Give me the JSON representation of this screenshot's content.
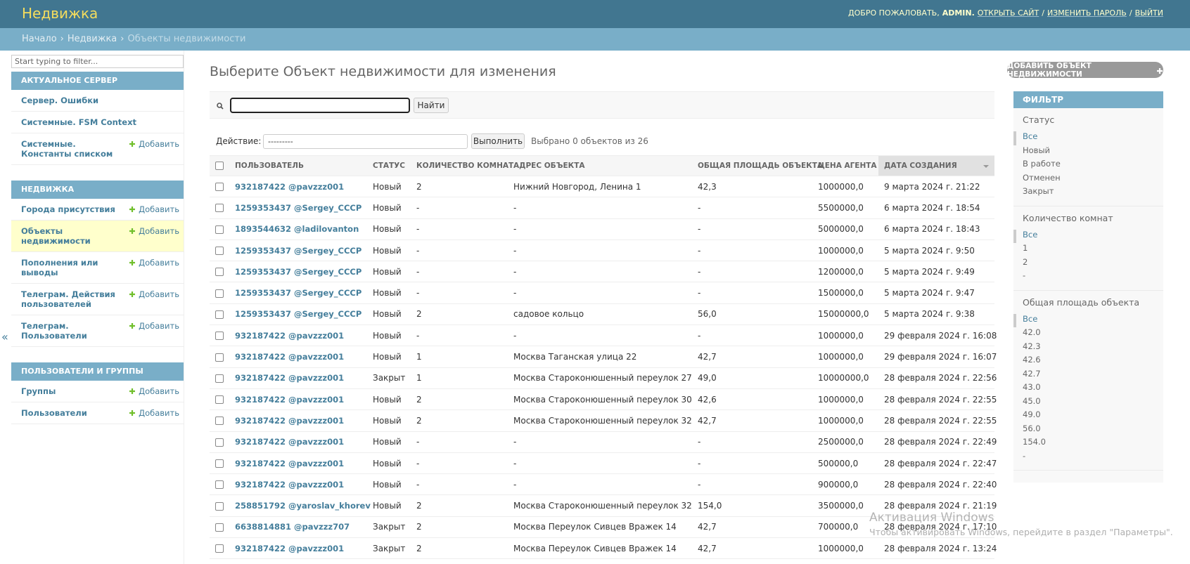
{
  "header": {
    "site_name": "Недвижка",
    "welcome": "ДОБРО ПОЖАЛОВАТЬ,",
    "user": "ADMIN.",
    "links": [
      "ОТКРЫТЬ САЙТ",
      "ИЗМЕНИТЬ ПАРОЛЬ",
      "ВЫЙТИ"
    ],
    "separator": "/"
  },
  "breadcrumbs": {
    "items": [
      "Начало",
      "Недвижка",
      "Объекты недвижимости"
    ],
    "separator": "›"
  },
  "sidebar": {
    "filter_placeholder": "Start typing to filter...",
    "toggle": "«",
    "apps": [
      {
        "name": "АКТУАЛЬНОЕ СЕРВЕР",
        "models": [
          {
            "name": "Сервер. Ошибки"
          },
          {
            "name": "Системные. FSM Context"
          },
          {
            "name": "Системные. Константы списком",
            "add": "Добавить"
          }
        ]
      },
      {
        "name": "НЕДВИЖКА",
        "models": [
          {
            "name": "Города присутствия",
            "add": "Добавить"
          },
          {
            "name": "Объекты недвижимости",
            "add": "Добавить",
            "active": true
          },
          {
            "name": "Пополнения или выводы",
            "add": "Добавить"
          },
          {
            "name": "Телеграм. Действия пользователей",
            "add": "Добавить"
          },
          {
            "name": "Телеграм. Пользователи",
            "add": "Добавить"
          }
        ]
      },
      {
        "name": "ПОЛЬЗОВАТЕЛИ И ГРУППЫ",
        "models": [
          {
            "name": "Группы",
            "add": "Добавить"
          },
          {
            "name": "Пользователи",
            "add": "Добавить"
          }
        ]
      }
    ]
  },
  "content": {
    "title": "Выберите Объект недвижимости для изменения",
    "add_button": "ДОБАВИТЬ ОБЪЕКТ НЕДВИЖИМОСТИ",
    "search_button": "Найти",
    "action_label": "Действие:",
    "action_select": "---------",
    "action_go": "Выполнить",
    "selected_counter": "Выбрано 0 объектов из 26"
  },
  "table": {
    "columns": [
      "ПОЛЬЗОВАТЕЛЬ",
      "СТАТУС",
      "КОЛИЧЕСТВО КОМНАТ",
      "АДРЕС ОБЪЕКТА",
      "ОБЩАЯ ПЛОЩАДЬ ОБЪЕКТА",
      "ЦЕНА АГЕНТА",
      "ДАТА СОЗДАНИЯ"
    ],
    "rows": [
      [
        "932187422 @pavzzz001",
        "Новый",
        "2",
        "Нижний Новгород, Ленина 1",
        "42,3",
        "1000000,0",
        "9 марта 2024 г. 21:22"
      ],
      [
        "1259353437 @Sergey_CCCP",
        "Новый",
        "-",
        "-",
        "-",
        "5500000,0",
        "6 марта 2024 г. 18:54"
      ],
      [
        "1893544632 @ladilovanton",
        "Новый",
        "-",
        "-",
        "-",
        "5000000,0",
        "6 марта 2024 г. 18:43"
      ],
      [
        "1259353437 @Sergey_CCCP",
        "Новый",
        "-",
        "-",
        "-",
        "1000000,0",
        "5 марта 2024 г. 9:50"
      ],
      [
        "1259353437 @Sergey_CCCP",
        "Новый",
        "-",
        "-",
        "-",
        "1200000,0",
        "5 марта 2024 г. 9:49"
      ],
      [
        "1259353437 @Sergey_CCCP",
        "Новый",
        "-",
        "-",
        "-",
        "1500000,0",
        "5 марта 2024 г. 9:47"
      ],
      [
        "1259353437 @Sergey_CCCP",
        "Новый",
        "2",
        "садовое кольцо",
        "56,0",
        "15000000,0",
        "5 марта 2024 г. 9:38"
      ],
      [
        "932187422 @pavzzz001",
        "Новый",
        "-",
        "-",
        "-",
        "1000000,0",
        "29 февраля 2024 г. 16:08"
      ],
      [
        "932187422 @pavzzz001",
        "Новый",
        "1",
        "Москва Таганская улица 22",
        "42,7",
        "1000000,0",
        "29 февраля 2024 г. 16:07"
      ],
      [
        "932187422 @pavzzz001",
        "Закрыт",
        "1",
        "Москва Староконюшенный переулок 27",
        "49,0",
        "10000000,0",
        "28 февраля 2024 г. 22:56"
      ],
      [
        "932187422 @pavzzz001",
        "Новый",
        "2",
        "Москва Староконюшенный переулок 30",
        "42,6",
        "1000000,0",
        "28 февраля 2024 г. 22:55"
      ],
      [
        "932187422 @pavzzz001",
        "Новый",
        "2",
        "Москва Староконюшенный переулок 32",
        "42,7",
        "1000000,0",
        "28 февраля 2024 г. 22:55"
      ],
      [
        "932187422 @pavzzz001",
        "Новый",
        "-",
        "-",
        "-",
        "2500000,0",
        "28 февраля 2024 г. 22:49"
      ],
      [
        "932187422 @pavzzz001",
        "Новый",
        "-",
        "-",
        "-",
        "500000,0",
        "28 февраля 2024 г. 22:47"
      ],
      [
        "932187422 @pavzzz001",
        "Новый",
        "-",
        "-",
        "-",
        "900000,0",
        "28 февраля 2024 г. 22:40"
      ],
      [
        "258851792 @yaroslav_khorev",
        "Новый",
        "2",
        "Москва Староконюшенный переулок 32",
        "154,0",
        "3500000,0",
        "28 февраля 2024 г. 21:19"
      ],
      [
        "6638814881 @pavzzz707",
        "Закрыт",
        "2",
        "Москва Переулок Сивцев Вражек 14",
        "42,7",
        "700000,0",
        "28 февраля 2024 г. 17:10"
      ],
      [
        "932187422 @pavzzz001",
        "Закрыт",
        "2",
        "Москва Переулок Сивцев Вражек 14",
        "42,7",
        "1000000,0",
        "28 февраля 2024 г. 13:24"
      ]
    ]
  },
  "filter": {
    "title": "ФИЛЬТР",
    "groups": [
      {
        "title": "Статус",
        "options": [
          "Все",
          "Новый",
          "В работе",
          "Отменен",
          "Закрыт"
        ]
      },
      {
        "title": "Количество комнат",
        "options": [
          "Все",
          "1",
          "2",
          "-"
        ]
      },
      {
        "title": "Общая площадь объекта",
        "options": [
          "Все",
          "42.0",
          "42.3",
          "42.6",
          "42.7",
          "43.0",
          "45.0",
          "49.0",
          "56.0",
          "154.0",
          "-"
        ]
      }
    ]
  },
  "watermark": {
    "title": "Активация Windows",
    "text": "Чтобы активировать Windows, перейдите в раздел \"Параметры\"."
  }
}
